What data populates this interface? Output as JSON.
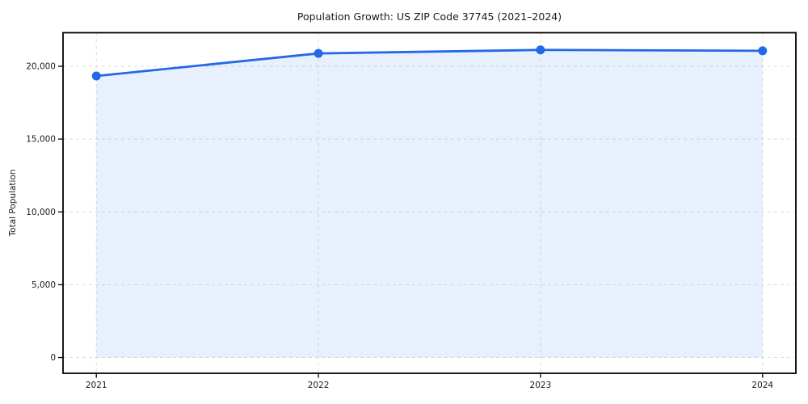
{
  "figure": {
    "background": "#ffffff",
    "text_color": "#1a1a1a",
    "spine_color": "#000000",
    "grid_color": "#dcdcdc"
  },
  "chart_data": {
    "type": "line",
    "title": "Population Growth: US ZIP Code 37745 (2021–2024)",
    "xlabel": "",
    "ylabel": "Total Population",
    "x": [
      2021,
      2022,
      2023,
      2024
    ],
    "x_tick_labels": [
      "2021",
      "2022",
      "2023",
      "2024"
    ],
    "series": [
      {
        "name": "Total Population",
        "values": [
          19330,
          20880,
          21120,
          21060
        ]
      }
    ],
    "y_ticks": [
      0,
      5000,
      10000,
      15000,
      20000
    ],
    "y_tick_labels": [
      "0",
      "5,000",
      "10,000",
      "15,000",
      "20,000"
    ],
    "xlim": [
      2020.85,
      2024.15
    ],
    "ylim": [
      -1080,
      22300
    ],
    "grid": true,
    "grid_style": "dashed",
    "legend_position": "none",
    "line_color": "#2368e8",
    "line_width": 2.8,
    "marker": "circle",
    "marker_radius": 5.5,
    "area_fill": true,
    "fill_color": "#2368e8",
    "fill_opacity": 0.1,
    "fill_baseline": 0
  }
}
